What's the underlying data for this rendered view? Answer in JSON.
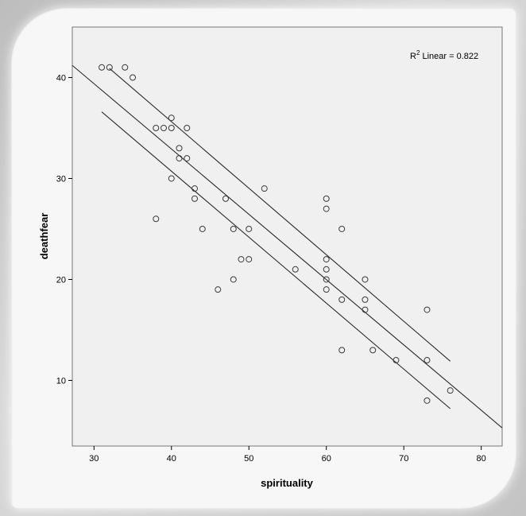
{
  "chart_data": {
    "type": "scatter",
    "xlabel": "spirituality",
    "ylabel": "deathfear",
    "xlim": [
      27.2,
      82.7
    ],
    "ylim": [
      3.5,
      45
    ],
    "x_ticks": [
      30,
      40,
      50,
      60,
      70,
      80
    ],
    "y_ticks": [
      10,
      20,
      30,
      40
    ],
    "annotation": {
      "prefix": "R",
      "superscript": "2",
      "text": " Linear = 0.822"
    },
    "points": [
      {
        "x": 31,
        "y": 41
      },
      {
        "x": 32,
        "y": 41
      },
      {
        "x": 34,
        "y": 41
      },
      {
        "x": 35,
        "y": 40
      },
      {
        "x": 38,
        "y": 35
      },
      {
        "x": 39,
        "y": 35
      },
      {
        "x": 40,
        "y": 35
      },
      {
        "x": 40,
        "y": 36
      },
      {
        "x": 41,
        "y": 33
      },
      {
        "x": 41,
        "y": 32
      },
      {
        "x": 42,
        "y": 35
      },
      {
        "x": 42,
        "y": 32
      },
      {
        "x": 40,
        "y": 30
      },
      {
        "x": 43,
        "y": 29
      },
      {
        "x": 43,
        "y": 28
      },
      {
        "x": 38,
        "y": 26
      },
      {
        "x": 44,
        "y": 25
      },
      {
        "x": 47,
        "y": 28
      },
      {
        "x": 48,
        "y": 25
      },
      {
        "x": 50,
        "y": 25
      },
      {
        "x": 52,
        "y": 29
      },
      {
        "x": 49,
        "y": 22
      },
      {
        "x": 50,
        "y": 22
      },
      {
        "x": 48,
        "y": 20
      },
      {
        "x": 46,
        "y": 19
      },
      {
        "x": 56,
        "y": 21
      },
      {
        "x": 60,
        "y": 28
      },
      {
        "x": 60,
        "y": 27
      },
      {
        "x": 62,
        "y": 25
      },
      {
        "x": 60,
        "y": 22
      },
      {
        "x": 60,
        "y": 21
      },
      {
        "x": 60,
        "y": 20
      },
      {
        "x": 60,
        "y": 19
      },
      {
        "x": 62,
        "y": 18
      },
      {
        "x": 65,
        "y": 20
      },
      {
        "x": 65,
        "y": 18
      },
      {
        "x": 65,
        "y": 17
      },
      {
        "x": 62,
        "y": 13
      },
      {
        "x": 66,
        "y": 13
      },
      {
        "x": 69,
        "y": 12
      },
      {
        "x": 73,
        "y": 17
      },
      {
        "x": 73,
        "y": 12
      },
      {
        "x": 73,
        "y": 8
      },
      {
        "x": 76,
        "y": 9
      }
    ],
    "fit_line": {
      "x": [
        27.2,
        82.7
      ],
      "y": [
        41.2,
        5.3
      ]
    },
    "ci_upper": {
      "x": [
        32,
        76
      ],
      "y": [
        40.9,
        11.9
      ]
    },
    "ci_lower": {
      "x": [
        31,
        76
      ],
      "y": [
        36.6,
        7.2
      ]
    },
    "grid": false,
    "colors": {
      "plot_bg": "#f0f0f0",
      "marker": "#3a3a3a",
      "line": "#2a2a2a"
    }
  }
}
